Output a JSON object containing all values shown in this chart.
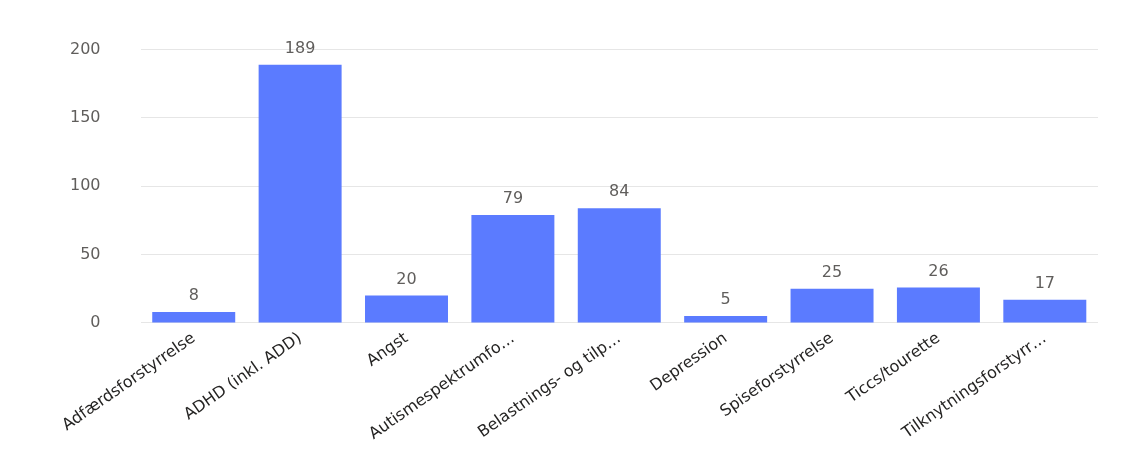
{
  "chart_data": {
    "type": "bar",
    "categories": [
      "Adfærdsforstyrrelse",
      "ADHD (inkl. ADD)",
      "Angst",
      "Autismespektrumfo…",
      "Belastnings- og tilp…",
      "Depression",
      "Spiseforstyrrelse",
      "Ticcs/tourette",
      "Tilknytningsforstyrr…"
    ],
    "values": [
      8,
      189,
      20,
      79,
      84,
      5,
      25,
      26,
      17
    ],
    "color": "#5b7bff",
    "ylim": [
      0,
      200
    ],
    "yticks": [
      0,
      50,
      100,
      150,
      200
    ],
    "grid": "y",
    "data_labels": true
  }
}
